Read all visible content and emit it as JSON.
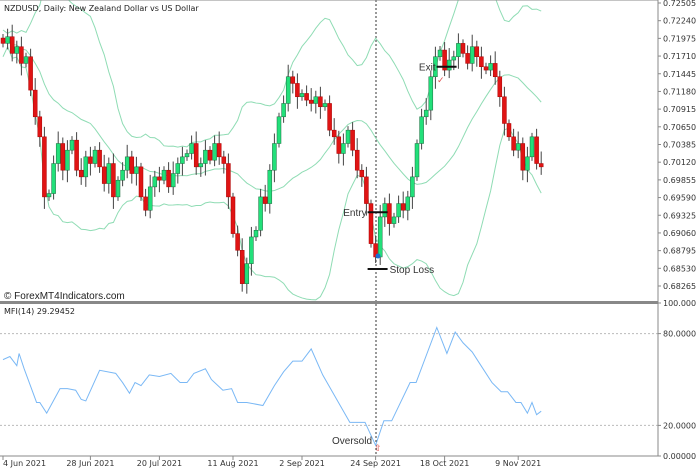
{
  "chart_title": "NZDUSD, Daily:  New Zealand Dollar vs US Dollar",
  "watermark": "© ForexMT4Indicators.com",
  "colors": {
    "bull": "#22e07a",
    "bear": "#e01414",
    "band": "#8fdcb4",
    "mfi": "#7ab8f5",
    "wick": "#444444"
  },
  "chart_data": [
    {
      "type": "candlestick",
      "title": "NZDUSD, Daily:  New Zealand Dollar vs US Dollar",
      "overlay": "Bollinger Bands",
      "ylim": [
        0.68265,
        0.72505
      ],
      "y_ticks": [
        "0.72505",
        "0.72240",
        "0.71975",
        "0.71710",
        "0.71445",
        "0.71180",
        "0.70915",
        "0.70650",
        "0.70385",
        "0.70120",
        "0.69855",
        "0.69590",
        "0.69325",
        "0.69060",
        "0.68795",
        "0.68530",
        "0.68265"
      ],
      "closes": [
        0.719,
        0.72,
        0.7175,
        0.7185,
        0.716,
        0.717,
        0.712,
        0.708,
        0.705,
        0.696,
        0.6965,
        0.701,
        0.704,
        0.7,
        0.703,
        0.7045,
        0.7,
        0.699,
        0.702,
        0.701,
        0.703,
        0.7005,
        0.698,
        0.701,
        0.696,
        0.6985,
        0.7,
        0.702,
        0.6995,
        0.7005,
        0.696,
        0.694,
        0.6975,
        0.699,
        0.6985,
        0.7,
        0.6975,
        0.6995,
        0.701,
        0.702,
        0.7025,
        0.704,
        0.7005,
        0.701,
        0.703,
        0.7015,
        0.704,
        0.702,
        0.701,
        0.696,
        0.6905,
        0.688,
        0.683,
        0.686,
        0.69,
        0.691,
        0.696,
        0.695,
        0.7,
        0.704,
        0.708,
        0.71,
        0.714,
        0.713,
        0.711,
        0.7115,
        0.7105,
        0.71,
        0.711,
        0.7095,
        0.71,
        0.706,
        0.705,
        0.7025,
        0.704,
        0.706,
        0.703,
        0.7,
        0.699,
        0.695,
        0.689,
        0.687,
        0.693,
        0.695,
        0.692,
        0.693,
        0.695,
        0.694,
        0.696,
        0.699,
        0.704,
        0.708,
        0.709,
        0.714,
        0.717,
        0.718,
        0.715,
        0.7165,
        0.717,
        0.719,
        0.7175,
        0.716,
        0.7185,
        0.717,
        0.7155,
        0.715,
        0.716,
        0.714,
        0.711,
        0.707,
        0.705,
        0.703,
        0.704,
        0.7,
        0.702,
        0.705,
        0.701,
        0.7005
      ],
      "annotations": [
        {
          "label": "Exit",
          "price": 0.7155,
          "index": 96
        },
        {
          "label": "Entry",
          "price": 0.6937,
          "index": 81
        },
        {
          "label": "Stop Loss",
          "price": 0.6852,
          "index": 81
        }
      ]
    },
    {
      "type": "line",
      "title": "MFI(14) 29.29452",
      "ylim": [
        0,
        100
      ],
      "y_ticks": [
        "100.00000",
        "80.00000",
        "20.00000",
        "0.00000"
      ],
      "levels": [
        80,
        20
      ],
      "points": [
        [
          0,
          63
        ],
        [
          1.5,
          65
        ],
        [
          3,
          59
        ],
        [
          3.5,
          67
        ],
        [
          4.6,
          57
        ],
        [
          7.3,
          35
        ],
        [
          8,
          35
        ],
        [
          9.5,
          28
        ],
        [
          12.4,
          44
        ],
        [
          14,
          44
        ],
        [
          15.8,
          43
        ],
        [
          17,
          37
        ],
        [
          18,
          36
        ],
        [
          21,
          56
        ],
        [
          24.5,
          54
        ],
        [
          26,
          48
        ],
        [
          27.5,
          41
        ],
        [
          28.7,
          48
        ],
        [
          30,
          46
        ],
        [
          31.8,
          53
        ],
        [
          34,
          52
        ],
        [
          36.5,
          54
        ],
        [
          38.5,
          48
        ],
        [
          40,
          48
        ],
        [
          41.5,
          54
        ],
        [
          44,
          57
        ],
        [
          45.3,
          50
        ],
        [
          47.8,
          43
        ],
        [
          49.7,
          44
        ],
        [
          51,
          35
        ],
        [
          53,
          35
        ],
        [
          56.5,
          33
        ],
        [
          59,
          46
        ],
        [
          61,
          55
        ],
        [
          63,
          62
        ],
        [
          65,
          62
        ],
        [
          67,
          70
        ],
        [
          69.5,
          53
        ],
        [
          75.4,
          22
        ],
        [
          76.7,
          22
        ],
        [
          78.7,
          22
        ],
        [
          81,
          7
        ],
        [
          82.8,
          23
        ],
        [
          84.5,
          23
        ],
        [
          88.5,
          48
        ],
        [
          89.8,
          48
        ],
        [
          94.3,
          84
        ],
        [
          96.5,
          67
        ],
        [
          98.3,
          81
        ],
        [
          100,
          74
        ],
        [
          102,
          68
        ],
        [
          103.5,
          61
        ],
        [
          106.3,
          48
        ],
        [
          108.3,
          42
        ],
        [
          109.7,
          42
        ],
        [
          111.5,
          35
        ],
        [
          112.6,
          35
        ],
        [
          114,
          28
        ],
        [
          115,
          35
        ],
        [
          116,
          27
        ],
        [
          117,
          29.29
        ]
      ],
      "annotation": "Oversold"
    }
  ],
  "x_ticks": [
    {
      "label": "4 Jun 2021",
      "index": 0
    },
    {
      "label": "28 Jun 2021",
      "index": 19
    },
    {
      "label": "20 Jul 2021",
      "index": 34
    },
    {
      "label": "11 Aug 2021",
      "index": 50
    },
    {
      "label": "2 Sep 2021",
      "index": 65
    },
    {
      "label": "24 Sep 2021",
      "index": 81
    },
    {
      "label": "18 Oct 2021",
      "index": 96
    },
    {
      "label": "9 Nov 2021",
      "index": 112
    }
  ]
}
